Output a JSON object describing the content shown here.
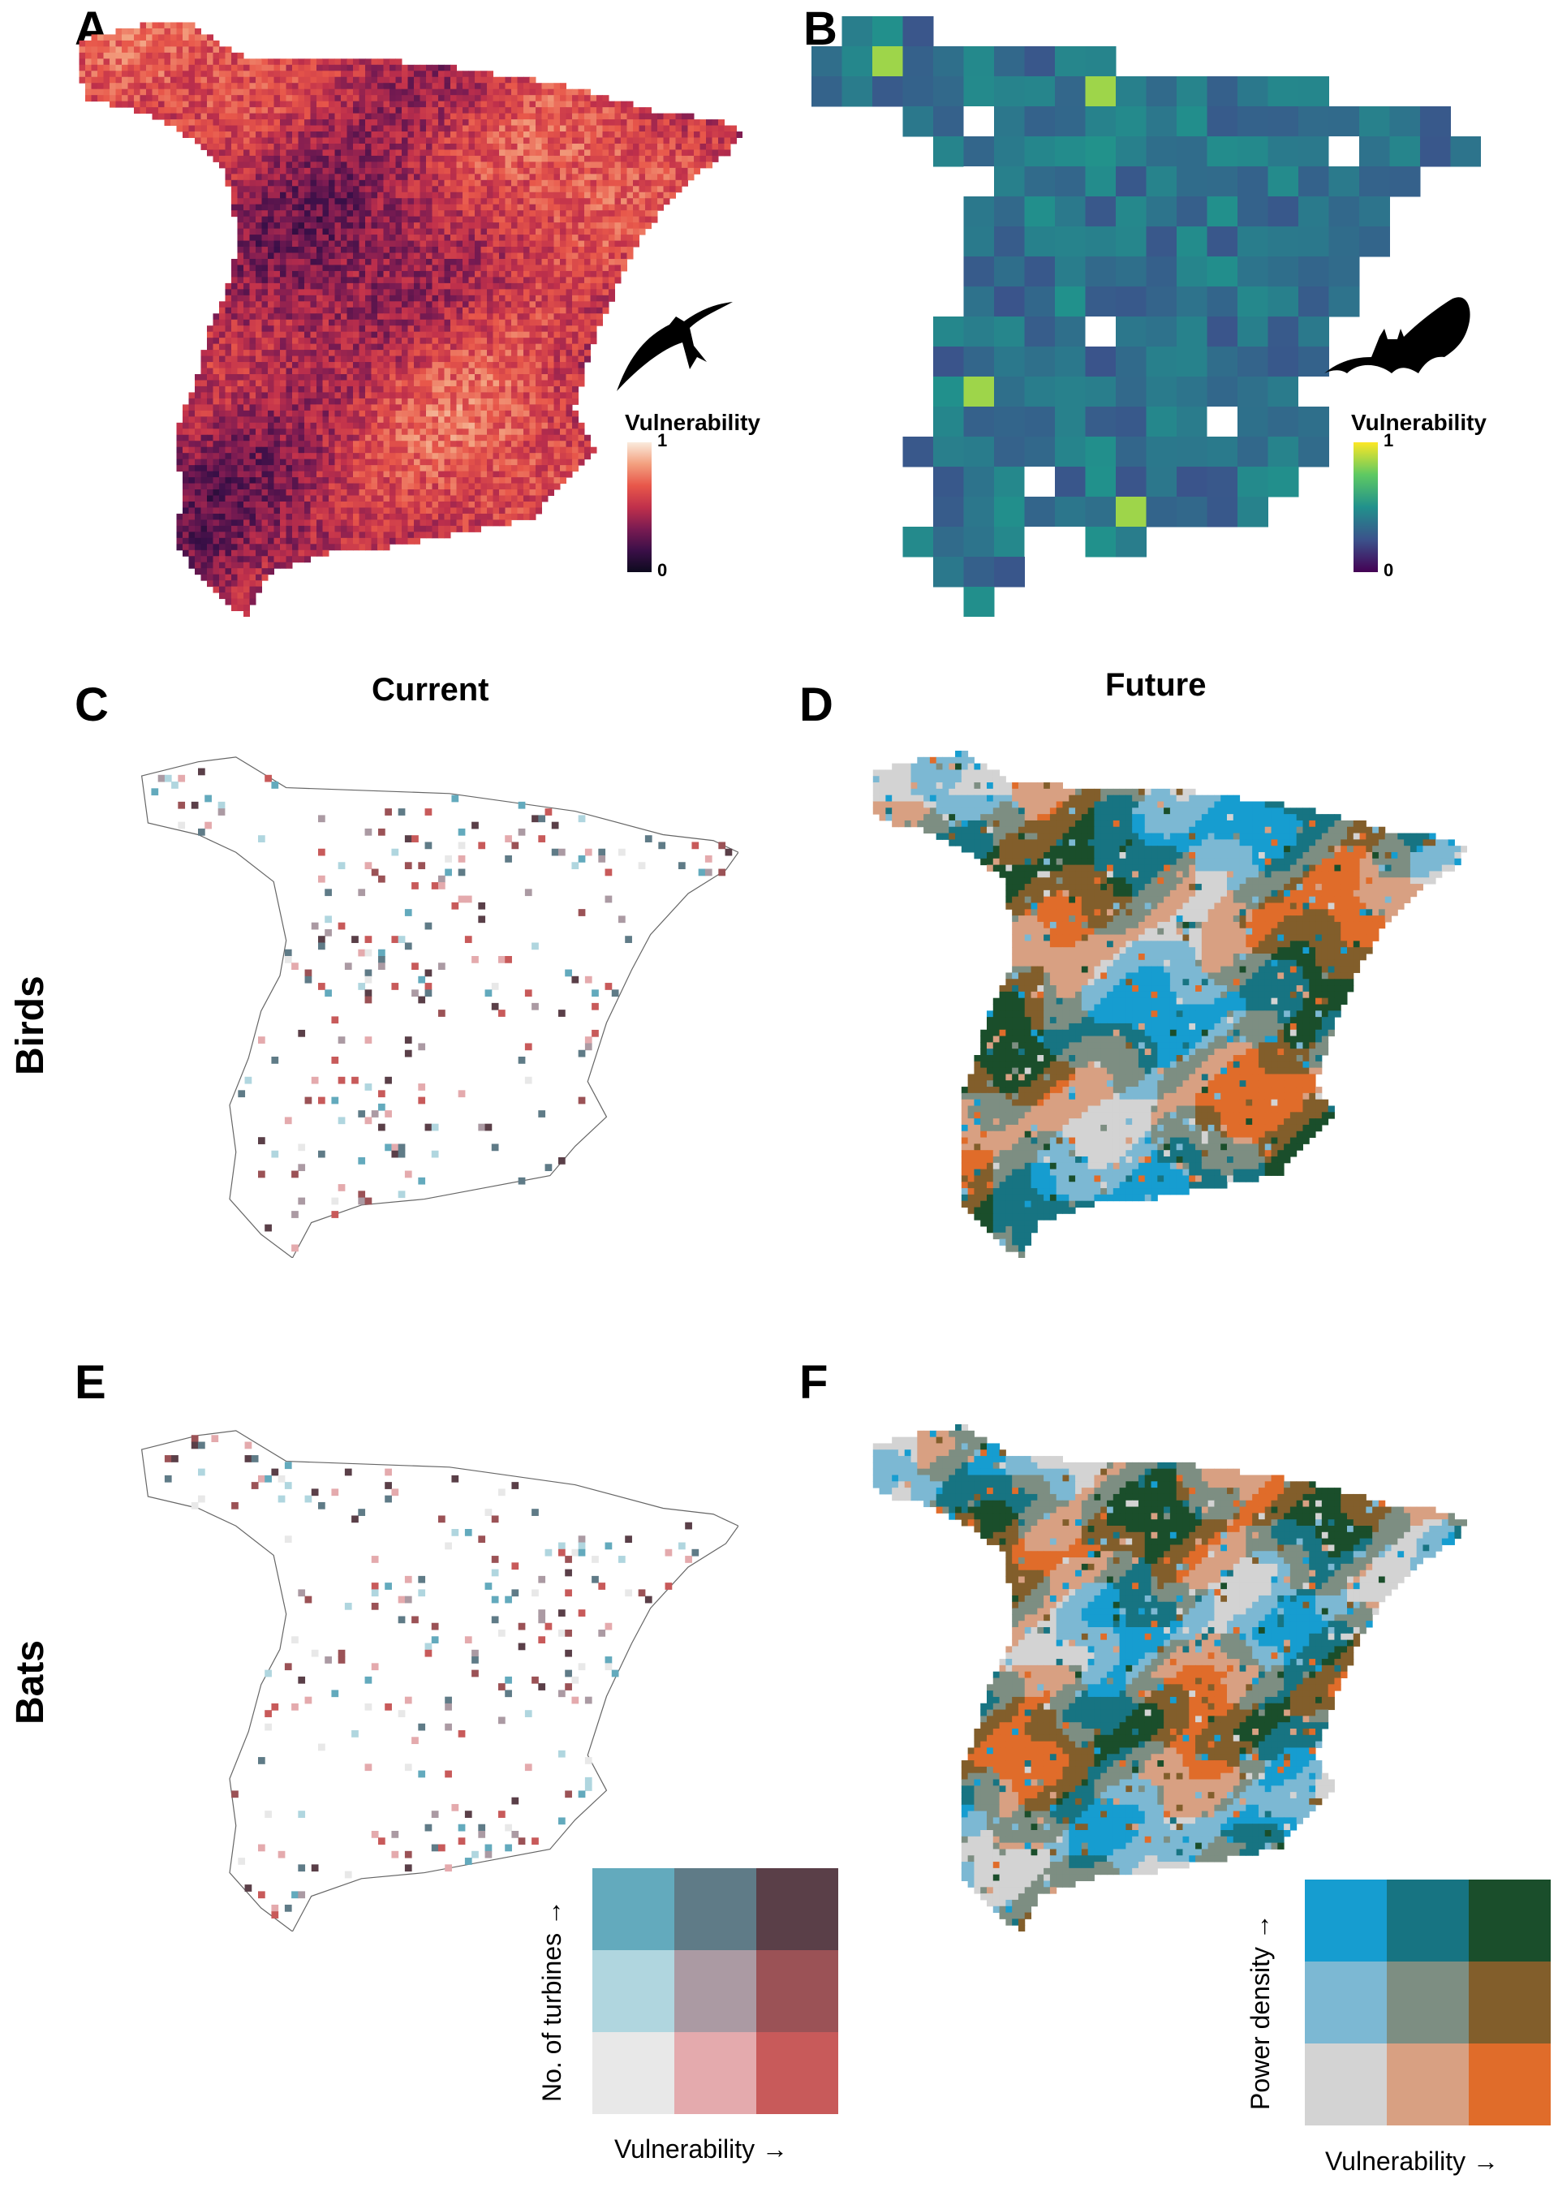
{
  "panels": {
    "A": {
      "label": "A",
      "legend_title": "Vulnerability",
      "tick_max": "1",
      "tick_min": "0",
      "icon": "swift-bird-silhouette",
      "colormap": [
        "#0d0a1e",
        "#3b0f48",
        "#7a1b52",
        "#c0304b",
        "#e8574a",
        "#f3a07f",
        "#faebdd"
      ]
    },
    "B": {
      "label": "B",
      "legend_title": "Vulnerability",
      "tick_max": "1",
      "tick_min": "0",
      "icon": "bat-silhouette",
      "colormap": [
        "#440154",
        "#3b528b",
        "#21918c",
        "#5ec962",
        "#fde725"
      ]
    },
    "C": {
      "label": "C",
      "column_title": "Current"
    },
    "D": {
      "label": "D",
      "column_title": "Future"
    },
    "E": {
      "label": "E"
    },
    "F": {
      "label": "F"
    }
  },
  "rows": {
    "birds": "Birds",
    "bats": "Bats"
  },
  "legend_current": {
    "x_label": "Vulnerability →",
    "y_label": "No. of turbines →",
    "colors": [
      [
        "#63aabd",
        "#5f7b87",
        "#5a3f48"
      ],
      [
        "#b0d6df",
        "#ab9aa3",
        "#9b5256"
      ],
      [
        "#e8e8e8",
        "#e4aaad",
        "#c85a5a"
      ]
    ]
  },
  "legend_future": {
    "x_label": "Vulnerability →",
    "y_label": "Power density →",
    "colors": [
      [
        "#169dd0",
        "#177482",
        "#1a4e2b"
      ],
      [
        "#7cb8d3",
        "#7d8e82",
        "#825e2b"
      ],
      [
        "#d3d3d3",
        "#d8a082",
        "#e06c2a"
      ]
    ]
  }
}
